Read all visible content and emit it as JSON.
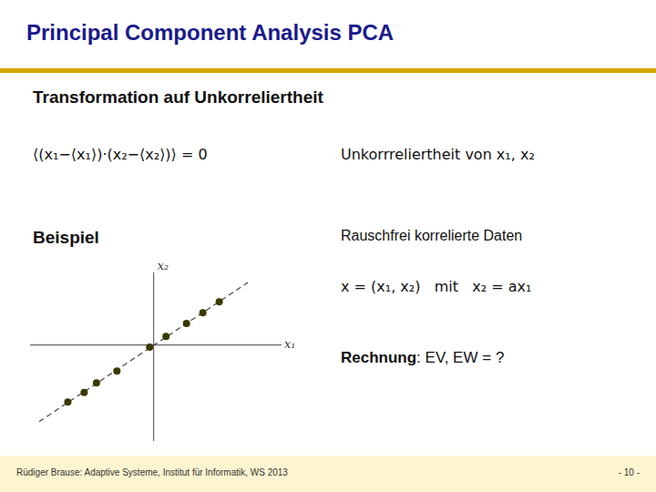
{
  "chart_data": {
    "type": "scatter",
    "title": "Principal Component Analysis PCA",
    "annotations": [
      "Transformation auf Unkorreliertheit",
      "⟨(x₁−⟨x₁⟩)·(x₂−⟨x₂⟩)⟩ = 0",
      "Unkorrreliertheit von x₁, x₂",
      "Beispiel",
      "Rauschfrei korrelierte Daten",
      "x = (x₁, x₂)   mit   x₂ = ax₁",
      "Rechnung: EV, EW = ?",
      "Rüdiger Brause: Adaptive Systeme, Institut für Informatik, WS 2013",
      "- 10 -"
    ],
    "xlabel": "x₁",
    "ylabel": "x₂",
    "series": [
      {
        "type": "scatter",
        "color": "#3a3a00",
        "marker": "circle",
        "x": [
          -2.1,
          -1.7,
          -1.4,
          -0.9,
          -0.1,
          0.3,
          0.8,
          1.2,
          1.6
        ],
        "values": [
          -2.4,
          -2.0,
          -1.6,
          -1.1,
          -0.1,
          0.35,
          0.9,
          1.35,
          1.8
        ]
      },
      {
        "type": "line",
        "color": "#444444",
        "line_style": "dashed",
        "x": [
          -2.8,
          2.3
        ],
        "values": [
          -3.22539453125,
          2.6158984375
        ]
      }
    ],
    "xlim": [
      -3.0,
      3.1
    ],
    "ylim": [
      -4,
      3
    ],
    "grid": false,
    "tick_labels": false
  }
}
